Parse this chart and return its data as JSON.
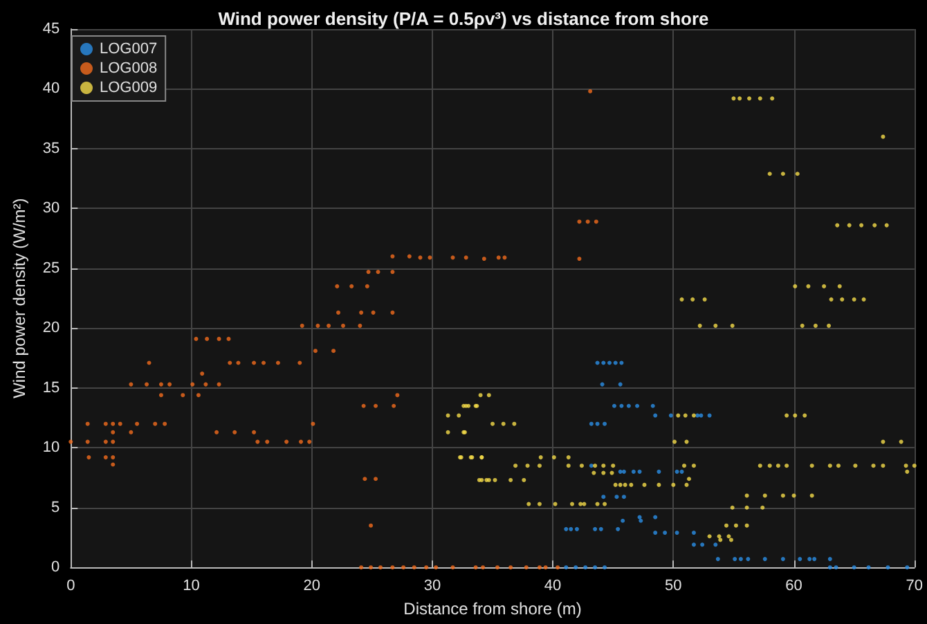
{
  "chart_data": {
    "type": "scatter",
    "title": "Wind power density (P/A = 0.5ρv³) vs distance from shore",
    "xlabel": "Distance from shore (m)",
    "ylabel": "Wind power density (W/m²)",
    "xlim": [
      0,
      70
    ],
    "xticks": [
      0,
      10,
      20,
      30,
      40,
      50,
      60,
      70
    ],
    "ylim": [
      0,
      45
    ],
    "yticks": [
      0,
      5,
      10,
      15,
      20,
      25,
      30,
      35,
      40,
      45
    ],
    "grid": true,
    "legend": "top left",
    "marker": "circle",
    "series": [
      {
        "name": "LOG007",
        "color": "#2b8fe6",
        "x": [
          43.7,
          44.2,
          44.7,
          45.2,
          45.7,
          44.1,
          45.6,
          45.1,
          45.7,
          46.3,
          47.0,
          48.3,
          48.5,
          49.8,
          52.0,
          52.3,
          53.0,
          43.2,
          43.7,
          44.3,
          43.2,
          45.6,
          45.9,
          46.7,
          47.2,
          48.8,
          50.3,
          50.7,
          44.2,
          45.3,
          45.9,
          47.2,
          48.5,
          45.8,
          47.3,
          41.1,
          41.5,
          42.0,
          43.5,
          44.0,
          45.4,
          48.5,
          49.3,
          50.3,
          51.7,
          51.7,
          52.4,
          53.5,
          53.7,
          55.1,
          55.6,
          56.2,
          57.6,
          59.1,
          60.5,
          61.3,
          61.7,
          63.0,
          41.1,
          41.9,
          42.7,
          43.5,
          44.3,
          63.0,
          63.5,
          65.0,
          66.2,
          67.8,
          69.4
        ],
        "values": [
          17.1,
          17.1,
          17.1,
          17.1,
          17.1,
          15.3,
          15.3,
          13.5,
          13.5,
          13.5,
          13.5,
          13.5,
          12.7,
          12.7,
          12.7,
          12.7,
          12.7,
          12.0,
          12.0,
          12.0,
          8.5,
          8.0,
          8.0,
          8.0,
          8.0,
          8.0,
          8.0,
          8.0,
          5.9,
          5.9,
          5.9,
          4.2,
          4.2,
          3.9,
          3.9,
          3.2,
          3.2,
          3.2,
          3.2,
          3.2,
          3.2,
          2.9,
          2.9,
          2.9,
          2.9,
          1.9,
          1.9,
          1.9,
          0.7,
          0.7,
          0.7,
          0.7,
          0.7,
          0.7,
          0.7,
          0.7,
          0.7,
          0.7,
          0,
          0,
          0,
          0,
          0,
          0,
          0,
          0,
          0,
          0,
          0
        ]
      },
      {
        "name": "LOG008",
        "color": "#f26b1d",
        "x": [
          0,
          1.4,
          1.4,
          1.5,
          2.9,
          2.9,
          2.9,
          3.5,
          3.5,
          3.5,
          3.5,
          3.5,
          4.1,
          5.0,
          5.0,
          5.5,
          6.5,
          6.3,
          7.5,
          7.5,
          7.0,
          7.8,
          8.2,
          9.3,
          10.1,
          10.9,
          10.6,
          10.4,
          11.3,
          12.3,
          13.1,
          11.2,
          12.3,
          12.1,
          13.6,
          15.2,
          13.2,
          13.9,
          15.2,
          16.0,
          17.2,
          19.0,
          15.5,
          16.3,
          17.9,
          19.1,
          19.8,
          20.1,
          19.2,
          20.5,
          21.4,
          22.6,
          24.0,
          20.3,
          21.8,
          22.2,
          24.1,
          25.1,
          26.7,
          24.3,
          25.3,
          26.8,
          27.1,
          24.4,
          25.3,
          24.9,
          22.1,
          23.3,
          24.6,
          24.7,
          25.5,
          26.7,
          26.7,
          28.1,
          29.0,
          29.8,
          31.7,
          32.8,
          34.3,
          35.5,
          36.0,
          43.1,
          42.2,
          42.9,
          43.6,
          42.2,
          24.1,
          24.9,
          25.7,
          26.7,
          27.6,
          28.5,
          29.5,
          30.3,
          31.7,
          33.6,
          34.2,
          35.4,
          36.5,
          37.8,
          38.9,
          39.4,
          40.4
        ],
        "values": [
          10.5,
          12.0,
          10.5,
          9.2,
          12.0,
          10.5,
          9.2,
          12.0,
          11.3,
          10.5,
          9.2,
          8.6,
          12.0,
          11.3,
          15.3,
          12.0,
          17.1,
          15.3,
          15.3,
          14.4,
          12.0,
          12.0,
          15.3,
          14.4,
          15.3,
          16.2,
          14.4,
          19.1,
          19.1,
          19.1,
          19.1,
          15.3,
          15.3,
          11.3,
          11.3,
          11.3,
          17.1,
          17.1,
          17.1,
          17.1,
          17.1,
          17.1,
          10.5,
          10.5,
          10.5,
          10.5,
          10.5,
          12.0,
          20.2,
          20.2,
          20.2,
          20.2,
          20.2,
          18.1,
          18.1,
          21.3,
          21.3,
          21.3,
          21.3,
          13.5,
          13.5,
          13.5,
          14.4,
          7.4,
          7.4,
          3.5,
          23.5,
          23.5,
          23.5,
          24.7,
          24.7,
          24.7,
          26.0,
          26.0,
          25.9,
          25.9,
          25.9,
          25.9,
          25.8,
          25.9,
          25.9,
          39.8,
          28.9,
          28.9,
          28.9,
          25.8,
          0,
          0,
          0,
          0,
          0,
          0,
          0,
          0,
          0,
          0,
          0,
          0,
          0,
          0,
          0,
          0,
          0
        ]
      },
      {
        "name": "LOG009",
        "color": "#f5dc4a",
        "x": [
          55.0,
          55.5,
          56.3,
          57.2,
          58.2,
          58.0,
          59.1,
          60.3,
          67.4,
          63.6,
          64.6,
          65.6,
          66.7,
          67.7,
          60.1,
          61.2,
          62.5,
          63.8,
          63.1,
          64.0,
          65.0,
          65.8,
          50.7,
          51.6,
          52.6,
          52.2,
          53.5,
          54.9,
          60.7,
          61.8,
          62.9,
          31.3,
          32.2,
          31.3,
          32.7,
          32.3,
          33.2,
          34.1,
          32.8,
          33.0,
          33.7,
          34.0,
          34.7,
          34.1,
          34.7,
          32.6,
          33.6,
          35.0,
          35.9,
          36.8,
          32.6,
          50.4,
          51.0,
          51.7,
          59.4,
          60.1,
          60.9,
          50.1,
          51.1,
          67.4,
          68.9,
          32.4,
          33.3,
          34.1,
          39.0,
          40.1,
          41.3,
          36.9,
          37.9,
          38.9,
          41.3,
          42.4,
          43.5,
          44.2,
          45.0,
          50.9,
          51.7,
          57.2,
          58.0,
          58.7,
          59.4,
          61.5,
          63.0,
          63.7,
          65.1,
          66.6,
          67.4,
          69.3,
          70.0,
          69.4,
          43.4,
          44.2,
          44.9,
          51.3,
          33.9,
          34.5,
          35.2,
          36.5,
          37.6,
          45.2,
          45.6,
          46.0,
          46.5,
          47.6,
          48.8,
          50.0,
          51.1,
          56.1,
          57.6,
          59.1,
          60.0,
          61.5,
          38.0,
          38.9,
          40.2,
          41.6,
          42.3,
          42.6,
          43.7,
          44.3,
          54.9,
          56.1,
          57.4,
          54.4,
          55.2,
          56.1,
          53.0,
          53.8,
          54.6,
          53.9,
          54.8
        ],
        "values": [
          39.2,
          39.2,
          39.2,
          39.2,
          39.2,
          32.9,
          32.9,
          32.9,
          36.0,
          28.6,
          28.6,
          28.6,
          28.6,
          28.6,
          23.5,
          23.5,
          23.5,
          23.5,
          22.4,
          22.4,
          22.4,
          22.4,
          22.4,
          22.4,
          22.4,
          20.2,
          20.2,
          20.2,
          20.2,
          20.2,
          20.2,
          12.7,
          12.7,
          11.3,
          11.3,
          9.2,
          9.2,
          9.2,
          13.5,
          13.5,
          13.5,
          14.4,
          14.4,
          7.3,
          7.3,
          13.5,
          13.5,
          12.0,
          12.0,
          12.0,
          11.3,
          12.7,
          12.7,
          12.7,
          12.7,
          12.7,
          12.7,
          10.5,
          10.5,
          10.5,
          10.5,
          9.2,
          9.2,
          9.2,
          9.2,
          9.2,
          9.2,
          8.5,
          8.5,
          8.5,
          8.5,
          8.5,
          8.5,
          8.5,
          8.5,
          8.5,
          8.5,
          8.5,
          8.5,
          8.5,
          8.5,
          8.5,
          8.5,
          8.5,
          8.5,
          8.5,
          8.5,
          8.5,
          8.5,
          8.0,
          7.9,
          7.9,
          7.9,
          7.4,
          7.3,
          7.3,
          7.3,
          7.3,
          7.3,
          6.9,
          6.9,
          6.9,
          6.9,
          6.9,
          6.9,
          6.9,
          6.9,
          6.0,
          6.0,
          6.0,
          6.0,
          6.0,
          5.3,
          5.3,
          5.3,
          5.3,
          5.3,
          5.3,
          5.3,
          5.3,
          5.0,
          5.0,
          5.0,
          3.5,
          3.5,
          3.5,
          2.6,
          2.6,
          2.6,
          2.3,
          2.3
        ]
      }
    ]
  }
}
